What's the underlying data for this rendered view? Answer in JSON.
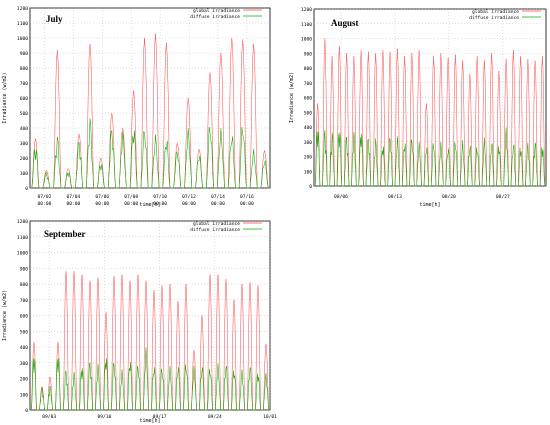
{
  "chart_data": [
    {
      "type": "line",
      "title": "July",
      "xlabel": "time[h]",
      "ylabel": "Irradiance (w/m2)",
      "ylim": [
        0,
        1200
      ],
      "yticks": [
        0,
        100,
        200,
        300,
        400,
        500,
        600,
        700,
        800,
        900,
        1000,
        1100,
        1200
      ],
      "xticks": [
        {
          "l1": "07/02",
          "l2": "00:00"
        },
        {
          "l1": "07/04",
          "l2": "00:00"
        },
        {
          "l1": "07/06",
          "l2": "00:00"
        },
        {
          "l1": "07/08",
          "l2": "00:00"
        },
        {
          "l1": "07/10",
          "l2": "00:00"
        },
        {
          "l1": "07/12",
          "l2": "00:00"
        },
        {
          "l1": "07/14",
          "l2": "00:00"
        },
        {
          "l1": "07/16",
          "l2": "00:00"
        }
      ],
      "grid": true,
      "legend_position": "top-right",
      "series": [
        {
          "name": "global irradiance",
          "color": "#ff4444",
          "values": [
            330,
            120,
            920,
            130,
            360,
            960,
            200,
            500,
            400,
            650,
            1000,
            1030,
            970,
            300,
            600,
            260,
            770,
            900,
            1000,
            990,
            960,
            250
          ]
        },
        {
          "name": "diffuse irradiance",
          "color": "#00b000",
          "values": [
            300,
            110,
            360,
            120,
            330,
            480,
            180,
            420,
            380,
            430,
            420,
            360,
            350,
            270,
            400,
            240,
            450,
            400,
            380,
            450,
            260,
            200
          ]
        }
      ]
    },
    {
      "type": "line",
      "title": "August",
      "xlabel": "time[h]",
      "ylabel": "Irradiance (w/m2)",
      "ylim": [
        0,
        1200
      ],
      "yticks": [
        0,
        100,
        200,
        300,
        400,
        500,
        600,
        700,
        800,
        900,
        1000,
        1100,
        1200
      ],
      "xticks": [
        {
          "l1": "08/06",
          "l2": ""
        },
        {
          "l1": "08/13",
          "l2": ""
        },
        {
          "l1": "08/20",
          "l2": ""
        },
        {
          "l1": "08/27",
          "l2": ""
        }
      ],
      "grid": true,
      "legend_position": "top-right",
      "series": [
        {
          "name": "global irradiance",
          "color": "#ff4444",
          "values": [
            560,
            1000,
            880,
            950,
            900,
            880,
            920,
            910,
            900,
            920,
            910,
            930,
            880,
            900,
            920,
            560,
            880,
            900,
            870,
            890,
            850,
            760,
            880,
            850,
            900,
            780,
            860,
            920,
            880,
            860,
            850,
            880
          ]
        },
        {
          "name": "diffuse irradiance",
          "color": "#00b000",
          "values": [
            430,
            400,
            380,
            420,
            360,
            380,
            400,
            350,
            330,
            300,
            360,
            340,
            320,
            350,
            300,
            290,
            320,
            300,
            280,
            330,
            310,
            300,
            290,
            330,
            320,
            300,
            400,
            310,
            290,
            300,
            320,
            300
          ]
        }
      ]
    },
    {
      "type": "line",
      "title": "September",
      "xlabel": "time[h]",
      "ylabel": "Irradiance (w/m2)",
      "ylim": [
        0,
        1200
      ],
      "yticks": [
        0,
        100,
        200,
        300,
        400,
        500,
        600,
        700,
        800,
        900,
        1000,
        1100,
        1200
      ],
      "xticks": [
        {
          "l1": "09/03",
          "l2": ""
        },
        {
          "l1": "09/10",
          "l2": ""
        },
        {
          "l1": "09/17",
          "l2": ""
        },
        {
          "l1": "09/24",
          "l2": ""
        },
        {
          "l1": "10/01",
          "l2": ""
        }
      ],
      "grid": true,
      "legend_position": "top-right",
      "series": [
        {
          "name": "global irradiance",
          "color": "#ff4444",
          "values": [
            430,
            150,
            210,
            430,
            880,
            880,
            860,
            820,
            840,
            620,
            850,
            860,
            820,
            860,
            820,
            760,
            790,
            800,
            690,
            800,
            380,
            600,
            860,
            860,
            830,
            700,
            800,
            810,
            790,
            420
          ]
        },
        {
          "name": "diffuse irradiance",
          "color": "#00b000",
          "values": [
            380,
            150,
            160,
            380,
            270,
            250,
            300,
            330,
            300,
            370,
            330,
            260,
            340,
            310,
            400,
            300,
            290,
            280,
            300,
            320,
            280,
            300,
            290,
            300,
            310,
            280,
            260,
            300,
            260,
            240
          ]
        }
      ]
    }
  ]
}
